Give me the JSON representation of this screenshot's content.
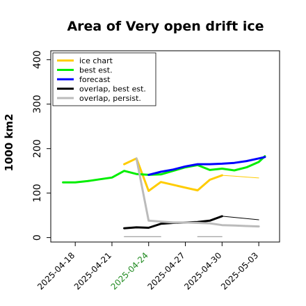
{
  "chart_data": {
    "type": "line",
    "title": "Area of Very open drift ice",
    "ylabel": "1000 km2",
    "xlabel": "",
    "ylim": [
      -10,
      420
    ],
    "yticks": [
      0,
      100,
      200,
      300,
      400
    ],
    "xticks": [
      {
        "label": "2025-04-18",
        "day": 0,
        "color": "#000000"
      },
      {
        "label": "2025-04-21",
        "day": 3,
        "color": "#000000"
      },
      {
        "label": "2025-04-24",
        "day": 6,
        "color": "#228b22"
      },
      {
        "label": "2025-04-27",
        "day": 9,
        "color": "#000000"
      },
      {
        "label": "2025-04-30",
        "day": 12,
        "color": "#000000"
      },
      {
        "label": "2025-05-03",
        "day": 15,
        "color": "#000000"
      }
    ],
    "xlim": [
      -2,
      16.7
    ],
    "legend_position": "top-left",
    "series": [
      {
        "name": "ice chart",
        "color": "#ffcc00",
        "width": 3,
        "points": [
          [
            4,
            165
          ],
          [
            5,
            178
          ],
          [
            6,
            105
          ],
          [
            7,
            125
          ],
          [
            10,
            106
          ],
          [
            11,
            130
          ],
          [
            12,
            140
          ]
        ]
      },
      {
        "name": "ice chart forecast",
        "legend": false,
        "color": "#ffcc00",
        "width": 1,
        "points": [
          [
            7,
            125
          ],
          [
            8,
            118
          ],
          [
            9,
            113
          ],
          [
            10,
            108
          ]
        ]
      },
      {
        "name": "ice chart forecast 2",
        "legend": false,
        "color": "#ffcc00",
        "width": 1,
        "points": [
          [
            12,
            140
          ],
          [
            13,
            138
          ],
          [
            14,
            136
          ],
          [
            15,
            134
          ]
        ]
      },
      {
        "name": "best est.",
        "color": "#00ee00",
        "width": 3,
        "points": [
          [
            -1,
            124
          ],
          [
            0,
            124
          ],
          [
            1,
            127
          ],
          [
            2,
            131
          ],
          [
            3,
            135
          ],
          [
            4,
            150
          ],
          [
            5,
            143
          ],
          [
            6,
            141
          ],
          [
            7,
            142
          ],
          [
            8,
            150
          ],
          [
            9,
            158
          ],
          [
            10,
            163
          ],
          [
            11,
            152
          ],
          [
            12,
            155
          ],
          [
            13,
            151
          ],
          [
            14,
            158
          ],
          [
            15,
            170
          ],
          [
            15.5,
            183
          ]
        ]
      },
      {
        "name": "forecast",
        "color": "#0000ff",
        "width": 3,
        "points": [
          [
            6,
            141
          ],
          [
            7,
            148
          ],
          [
            8,
            153
          ],
          [
            9,
            160
          ],
          [
            10,
            165
          ],
          [
            11,
            165
          ],
          [
            12,
            166
          ],
          [
            13,
            168
          ],
          [
            14,
            172
          ],
          [
            15,
            178
          ],
          [
            15.5,
            181
          ]
        ]
      },
      {
        "name": "overlap, best est.",
        "color": "#000000",
        "width": 3,
        "points": [
          [
            4,
            21
          ],
          [
            5,
            23
          ],
          [
            6,
            22
          ],
          [
            7,
            31
          ],
          [
            8,
            33
          ],
          [
            9,
            34
          ],
          [
            10,
            35
          ],
          [
            11,
            38
          ],
          [
            12,
            48
          ]
        ]
      },
      {
        "name": "overlap best forecast",
        "legend": false,
        "color": "#000000",
        "width": 1,
        "points": [
          [
            7,
            31
          ],
          [
            10,
            36
          ]
        ]
      },
      {
        "name": "overlap best forecast 2",
        "legend": false,
        "color": "#000000",
        "width": 1,
        "points": [
          [
            12,
            48
          ],
          [
            15,
            40
          ]
        ]
      },
      {
        "name": "overlap, persist.",
        "color": "#bbbbbb",
        "width": 3,
        "points": [
          [
            5,
            178
          ],
          [
            6,
            38
          ],
          [
            7,
            36
          ],
          [
            8,
            34
          ],
          [
            9,
            34
          ],
          [
            10,
            33
          ],
          [
            11,
            32
          ],
          [
            12,
            28
          ],
          [
            13,
            27
          ],
          [
            14,
            26
          ],
          [
            15,
            25
          ]
        ]
      },
      {
        "name": "persist zero 1",
        "legend": false,
        "color": "#888888",
        "width": 1,
        "points": [
          [
            4,
            2
          ],
          [
            7,
            2
          ]
        ]
      },
      {
        "name": "persist zero 2",
        "legend": false,
        "color": "#888888",
        "width": 1,
        "points": [
          [
            10,
            2
          ],
          [
            12,
            2
          ]
        ]
      }
    ],
    "legend": [
      {
        "label": "ice chart",
        "color": "#ffcc00"
      },
      {
        "label": "best est.",
        "color": "#00ee00"
      },
      {
        "label": "forecast",
        "color": "#0000ff"
      },
      {
        "label": "overlap, best est.",
        "color": "#000000"
      },
      {
        "label": "overlap, persist.",
        "color": "#bbbbbb"
      }
    ]
  }
}
